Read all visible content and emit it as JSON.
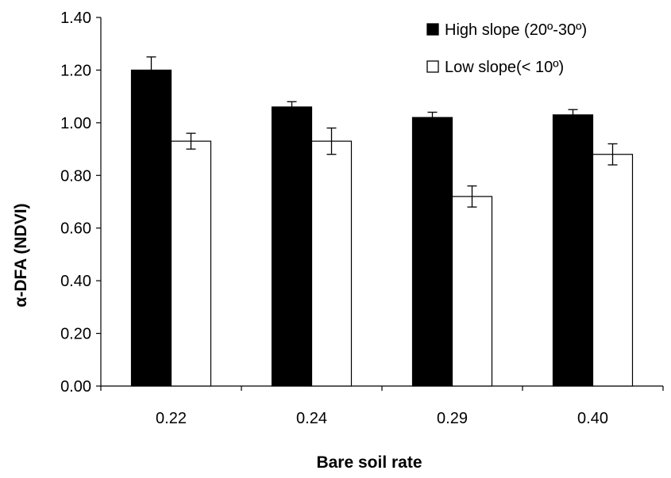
{
  "chart_data": {
    "type": "bar",
    "title": "",
    "xlabel": "Bare soil rate",
    "ylabel": "α-DFA (NDVI)",
    "categories": [
      "0.22",
      "0.24",
      "0.29",
      "0.40"
    ],
    "ylim": [
      0,
      1.4
    ],
    "yticks": [
      "0.00",
      "0.20",
      "0.40",
      "0.60",
      "0.80",
      "1.00",
      "1.20",
      "1.40"
    ],
    "grid": false,
    "legend_position": "top-right",
    "series": [
      {
        "name": "High slope (20º-30º)",
        "color": "#000000",
        "values": [
          1.2,
          1.06,
          1.02,
          1.03
        ],
        "errors": [
          0.05,
          0.02,
          0.02,
          0.02
        ]
      },
      {
        "name": "Low slope(< 10º)",
        "color": "#ffffff",
        "values": [
          0.93,
          0.93,
          0.72,
          0.88
        ],
        "errors": [
          0.03,
          0.05,
          0.04,
          0.04
        ]
      }
    ]
  }
}
